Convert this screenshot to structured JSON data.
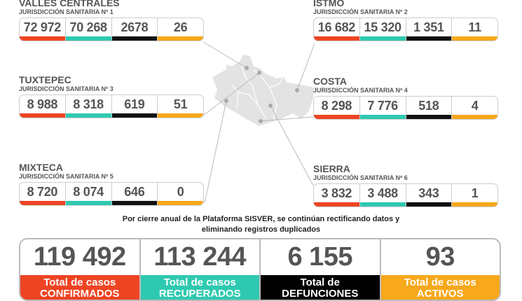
{
  "colors": {
    "confirmados": "#ee4423",
    "recuperados": "#2ec9b0",
    "defunciones": "#111111",
    "activos": "#f7a81b"
  },
  "regions": [
    {
      "name": "VALLES CENTRALES",
      "sub": "JURISDICCIÓN SANITARIA Nº 1",
      "values": [
        "72 972",
        "70 268",
        "2678",
        "26"
      ]
    },
    {
      "name": "ISTMO",
      "sub": "JURISDICCIÓN SANITARIA Nº 2",
      "values": [
        "16 682",
        "15 320",
        "1 351",
        "11"
      ]
    },
    {
      "name": "TUXTEPEC",
      "sub": "JURISDICCIÓN SANITARIA Nº 3",
      "values": [
        "8 988",
        "8 318",
        "619",
        "51"
      ]
    },
    {
      "name": "COSTA",
      "sub": "JURISDICCIÓN SANITARIA Nº 4",
      "values": [
        "8 298",
        "7 776",
        "518",
        "4"
      ]
    },
    {
      "name": "MIXTECA",
      "sub": "JURISDICCIÓN SANITARIA Nº 5",
      "values": [
        "8 720",
        "8 074",
        "646",
        "0"
      ]
    },
    {
      "name": "SIERRA",
      "sub": "JURISDICCIÓN SANITARIA Nº 6",
      "values": [
        "3 832",
        "3 488",
        "343",
        "1"
      ]
    }
  ],
  "note": {
    "line1": "Por cierre anual de la Plataforma SISVER, se continúan rectificando datos y",
    "line2": "eliminando registros duplicados"
  },
  "totals": [
    {
      "value": "119 492",
      "label1": "Total de casos",
      "label2": "CONFIRMADOS"
    },
    {
      "value": "113 244",
      "label1": "Total de casos",
      "label2": "RECUPERADOS"
    },
    {
      "value": "6 155",
      "label1": "Total de",
      "label2": "DEFUNCIONES"
    },
    {
      "value": "93",
      "label1": "Total de casos",
      "label2": "ACTIVOS"
    }
  ]
}
